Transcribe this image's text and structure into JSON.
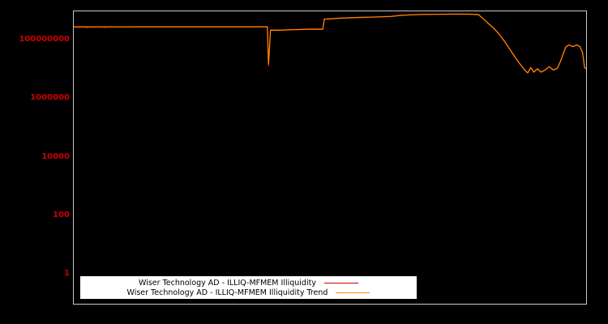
{
  "colors": {
    "page_background": "#000000",
    "plot_background": "#000000",
    "plot_border": "#c8c8c8",
    "tick_label": "#cd0000",
    "legend_background": "#ffffff",
    "legend_text": "#000000"
  },
  "chart_data": {
    "type": "line",
    "title": "",
    "xlabel": "",
    "ylabel": "",
    "y_scale": "log",
    "ylog_min": -1,
    "ylog_max": 9,
    "x_min": 0,
    "x_max": 100,
    "grid": false,
    "x_tick_labels": [],
    "yticks": [
      {
        "value": 100000000,
        "label": "100000000"
      },
      {
        "value": 1000000,
        "label": "1000000"
      },
      {
        "value": 10000,
        "label": "10000"
      },
      {
        "value": 100,
        "label": "100"
      },
      {
        "value": 1,
        "label": "1"
      }
    ],
    "legend_position": "bottom-left-inside",
    "series": [
      {
        "name": "Wiser Technology AD - ILLIQ-MFMEM Illiquidity",
        "color": "#cc0000",
        "points": [
          [
            0,
            300000000.0
          ],
          [
            1,
            280000000.0
          ],
          [
            1.8,
            310000000.0
          ],
          [
            2.5,
            270000000.0
          ],
          [
            3.2,
            300000000.0
          ],
          [
            4,
            285000000.0
          ],
          [
            5,
            305000000.0
          ],
          [
            6,
            280000000.0
          ],
          [
            7,
            300000000.0
          ],
          [
            8,
            290000000.0
          ],
          [
            9,
            300000000.0
          ],
          [
            10,
            290000000.0
          ],
          [
            11,
            295000000.0
          ],
          [
            12,
            300000000.0
          ],
          [
            15,
            300000000.0
          ],
          [
            20,
            300000000.0
          ],
          [
            25,
            300000000.0
          ],
          [
            30,
            300000000.0
          ],
          [
            35,
            300000000.0
          ],
          [
            37.8,
            300000000.0
          ],
          [
            38.0,
            13000000.0
          ],
          [
            38.4,
            230000000.0
          ],
          [
            40,
            230000000.0
          ],
          [
            43,
            240000000.0
          ],
          [
            46,
            250000000.0
          ],
          [
            48.6,
            250000000.0
          ],
          [
            48.9,
            550000000.0
          ],
          [
            50,
            560000000.0
          ],
          [
            52,
            590000000.0
          ],
          [
            54,
            610000000.0
          ],
          [
            56,
            630000000.0
          ],
          [
            58,
            640000000.0
          ],
          [
            60,
            660000000.0
          ],
          [
            62,
            680000000.0
          ],
          [
            64,
            740000000.0
          ],
          [
            66,
            770000000.0
          ],
          [
            68,
            790000000.0
          ],
          [
            71,
            800000000.0
          ],
          [
            74,
            810000000.0
          ],
          [
            77,
            810000000.0
          ],
          [
            79,
            780000000.0
          ],
          [
            80,
            550000000.0
          ],
          [
            81,
            380000000.0
          ],
          [
            82,
            270000000.0
          ],
          [
            83,
            170000000.0
          ],
          [
            84,
            100000000.0
          ],
          [
            85,
            55000000.0
          ],
          [
            86,
            30000000.0
          ],
          [
            87,
            17000000.0
          ],
          [
            88,
            10000000.0
          ],
          [
            88.6,
            8000000.0
          ],
          [
            89.2,
            12000000.0
          ],
          [
            89.8,
            8500000.0
          ],
          [
            90.5,
            11000000.0
          ],
          [
            91.2,
            8500000.0
          ],
          [
            92,
            10000000.0
          ],
          [
            92.8,
            13000000.0
          ],
          [
            93.6,
            10000000.0
          ],
          [
            94.4,
            11500000.0
          ],
          [
            95,
            20000000.0
          ],
          [
            95.5,
            35000000.0
          ],
          [
            96,
            60000000.0
          ],
          [
            96.6,
            72000000.0
          ],
          [
            97.4,
            63000000.0
          ],
          [
            98.2,
            72000000.0
          ],
          [
            98.8,
            63000000.0
          ],
          [
            99.3,
            40000000.0
          ],
          [
            99.7,
            12000000.0
          ],
          [
            100,
            11000000.0
          ]
        ]
      },
      {
        "name": "Wiser Technology AD - ILLIQ-MFMEM Illiquidity Trend",
        "color": "#ff8c00",
        "points": [
          [
            0,
            295000000.0
          ],
          [
            5,
            295000000.0
          ],
          [
            10,
            295000000.0
          ],
          [
            15,
            295000000.0
          ],
          [
            20,
            295000000.0
          ],
          [
            25,
            295000000.0
          ],
          [
            30,
            295000000.0
          ],
          [
            35,
            295000000.0
          ],
          [
            37.8,
            295000000.0
          ],
          [
            38.0,
            15000000.0
          ],
          [
            38.4,
            225000000.0
          ],
          [
            40,
            225000000.0
          ],
          [
            43,
            235000000.0
          ],
          [
            46,
            245000000.0
          ],
          [
            48.6,
            245000000.0
          ],
          [
            48.9,
            540000000.0
          ],
          [
            50,
            550000000.0
          ],
          [
            52,
            580000000.0
          ],
          [
            54,
            600000000.0
          ],
          [
            56,
            620000000.0
          ],
          [
            58,
            630000000.0
          ],
          [
            60,
            650000000.0
          ],
          [
            62,
            670000000.0
          ],
          [
            64,
            730000000.0
          ],
          [
            66,
            760000000.0
          ],
          [
            68,
            780000000.0
          ],
          [
            71,
            790000000.0
          ],
          [
            74,
            800000000.0
          ],
          [
            77,
            800000000.0
          ],
          [
            79,
            770000000.0
          ],
          [
            80,
            540000000.0
          ],
          [
            81,
            370000000.0
          ],
          [
            82,
            260000000.0
          ],
          [
            83,
            165000000.0
          ],
          [
            84,
            98000000.0
          ],
          [
            85,
            54000000.0
          ],
          [
            86,
            29000000.0
          ],
          [
            87,
            16500000.0
          ],
          [
            88,
            9800000.0
          ],
          [
            88.6,
            7800000.0
          ],
          [
            89.2,
            11800000.0
          ],
          [
            89.8,
            8300000.0
          ],
          [
            90.5,
            10800000.0
          ],
          [
            91.2,
            8300000.0
          ],
          [
            92,
            9800000.0
          ],
          [
            92.8,
            12800000.0
          ],
          [
            93.6,
            9800000.0
          ],
          [
            94.4,
            11300000.0
          ],
          [
            95,
            19500000.0
          ],
          [
            95.5,
            34000000.0
          ],
          [
            96,
            59000000.0
          ],
          [
            96.6,
            71000000.0
          ],
          [
            97.4,
            62000000.0
          ],
          [
            98.2,
            71000000.0
          ],
          [
            98.8,
            62000000.0
          ],
          [
            99.3,
            39000000.0
          ],
          [
            99.7,
            11800000.0
          ],
          [
            100,
            10800000.0
          ]
        ]
      }
    ]
  }
}
